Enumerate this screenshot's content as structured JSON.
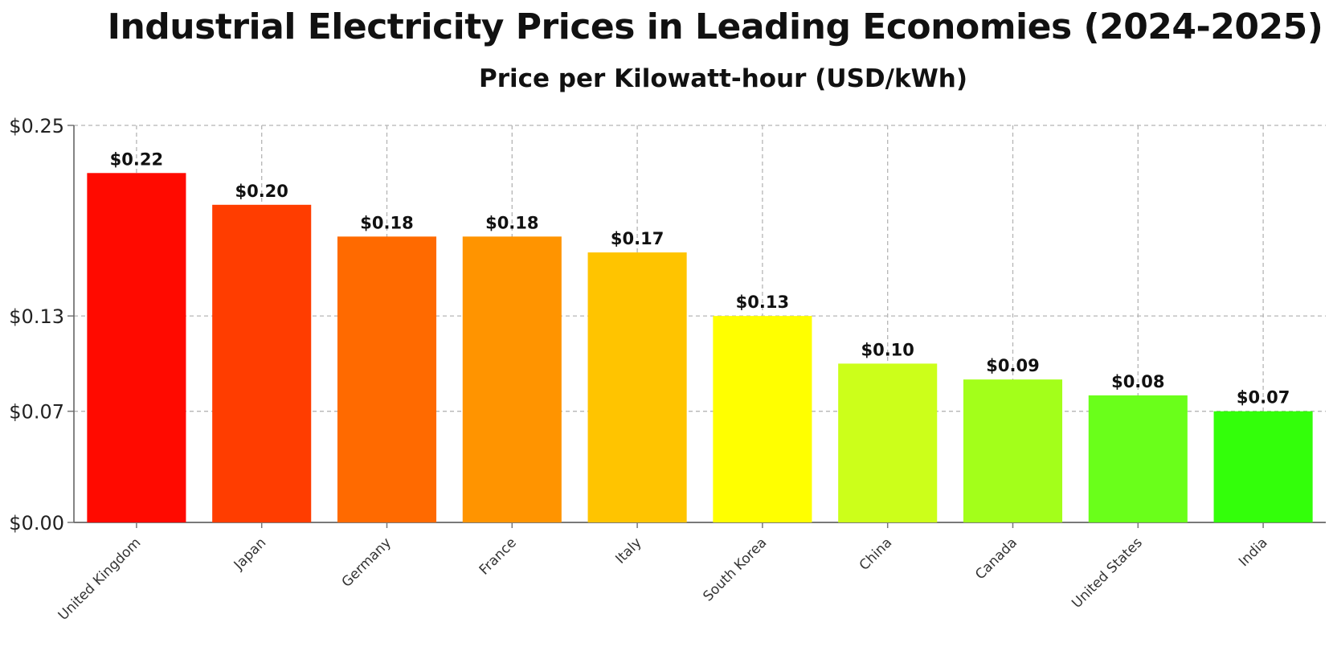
{
  "chart_data": {
    "type": "bar",
    "title": "Industrial Electricity Prices in Leading Economies (2024-2025)",
    "subtitle": "Price per Kilowatt-hour (USD/kWh)",
    "xlabel": "",
    "ylabel": "",
    "ylim": [
      0,
      0.25
    ],
    "y_ticks": [
      0,
      0.07,
      0.13,
      0.25
    ],
    "y_tick_labels": [
      "$0.00",
      "$0.07",
      "$0.13",
      "$0.25"
    ],
    "grid": true,
    "categories": [
      "United Kingdom",
      "Japan",
      "Germany",
      "France",
      "Italy",
      "South Korea",
      "China",
      "Canada",
      "United States",
      "India"
    ],
    "values": [
      0.22,
      0.2,
      0.18,
      0.18,
      0.17,
      0.13,
      0.1,
      0.09,
      0.08,
      0.07
    ],
    "value_labels": [
      "$0.22",
      "$0.20",
      "$0.18",
      "$0.18",
      "$0.17",
      "$0.13",
      "$0.10",
      "$0.09",
      "$0.08",
      "$0.07"
    ],
    "colors": [
      "#ff0a00",
      "#ff3d00",
      "#ff6a00",
      "#ff9400",
      "#ffc400",
      "#ffff00",
      "#ccff1a",
      "#a3ff1a",
      "#6aff1a",
      "#33ff0a"
    ]
  }
}
